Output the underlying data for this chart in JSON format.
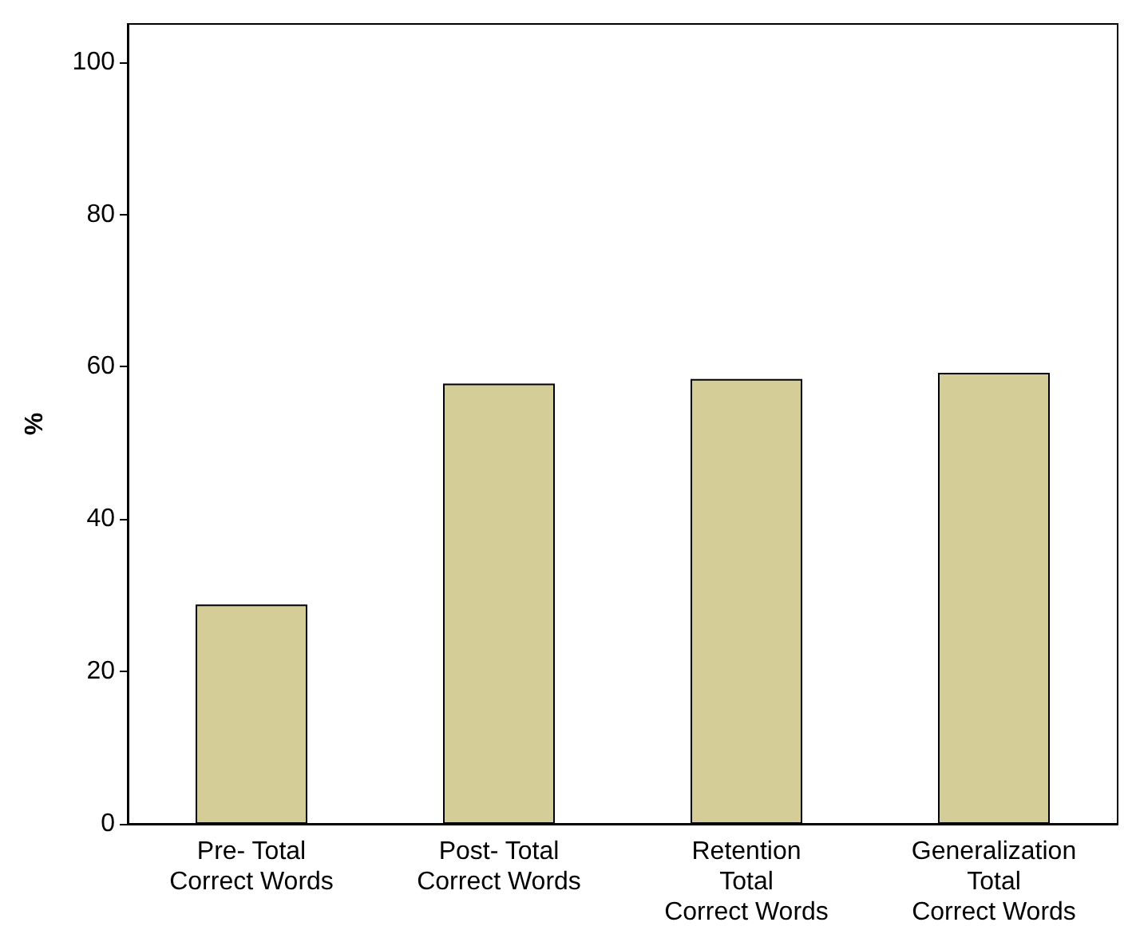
{
  "chart_data": {
    "type": "bar",
    "ylabel": "%",
    "categories": [
      "Pre- Total\nCorrect Words",
      "Post- Total\nCorrect Words",
      "Retention\nTotal\nCorrect Words",
      "Generalization\nTotal\nCorrect Words"
    ],
    "values": [
      28.8,
      57.8,
      58.4,
      59.2
    ],
    "color": "#d4cd98",
    "ylim": [
      0,
      105
    ],
    "yticks": [
      0,
      20,
      40,
      60,
      80,
      100
    ],
    "grid": false
  }
}
